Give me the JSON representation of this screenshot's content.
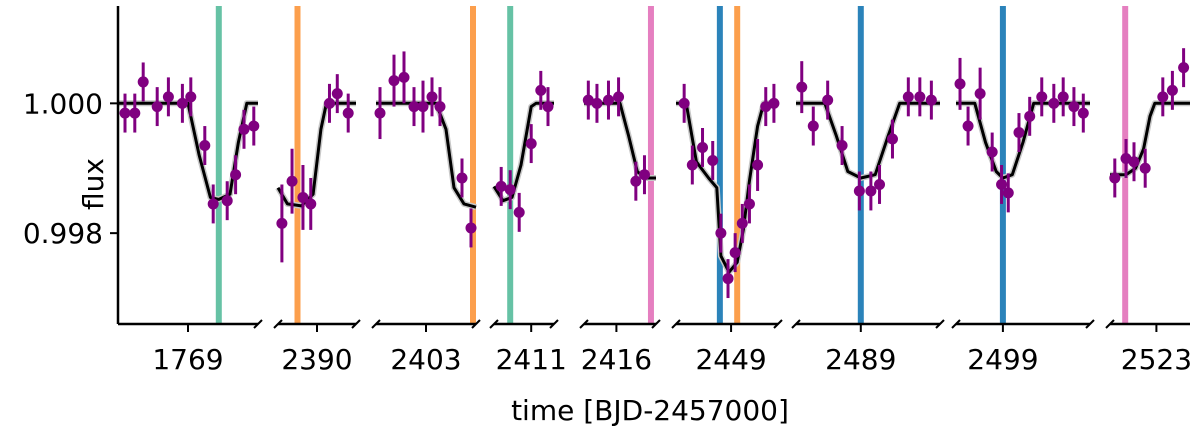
{
  "chart_data": {
    "type": "scatter",
    "xlabel": "time [BJD-2457000]",
    "ylabel": "flux",
    "ylim": [
      0.9966,
      1.0015
    ],
    "ytick_labels": [
      {
        "value": 1.0,
        "label": "1.000"
      },
      {
        "value": 0.998,
        "label": "0.998"
      }
    ],
    "grid": false,
    "colors": {
      "data": "#800080",
      "model": "#000000",
      "green": "#66c2a5",
      "orange": "#fc9f4d",
      "pink": "#e57fc0",
      "blue": "#2b83ba"
    },
    "panels": [
      {
        "tick_label": "1769",
        "x_range": [
          0,
          1
        ],
        "tick_at": 0.5,
        "vlines": [
          {
            "x": 0.72,
            "color": "green"
          }
        ],
        "model": [
          [
            0,
            1.0
          ],
          [
            0.5,
            1.0
          ],
          [
            0.58,
            0.9992
          ],
          [
            0.66,
            0.99855
          ],
          [
            0.72,
            0.99852
          ],
          [
            0.8,
            0.9986
          ],
          [
            0.86,
            0.9994
          ],
          [
            0.92,
            1.0
          ],
          [
            1,
            1.0
          ]
        ],
        "points": [
          {
            "x": 0.05,
            "y": 0.99985,
            "e": 0.0003
          },
          {
            "x": 0.12,
            "y": 0.99985,
            "e": 0.0003
          },
          {
            "x": 0.18,
            "y": 1.00033,
            "e": 0.0003
          },
          {
            "x": 0.28,
            "y": 0.99995,
            "e": 0.0003
          },
          {
            "x": 0.36,
            "y": 1.0001,
            "e": 0.0003
          },
          {
            "x": 0.46,
            "y": 1.0,
            "e": 0.0003
          },
          {
            "x": 0.52,
            "y": 1.0001,
            "e": 0.0003
          },
          {
            "x": 0.62,
            "y": 0.99935,
            "e": 0.0003
          },
          {
            "x": 0.68,
            "y": 0.99845,
            "e": 0.0003
          },
          {
            "x": 0.78,
            "y": 0.9985,
            "e": 0.0003
          },
          {
            "x": 0.84,
            "y": 0.9989,
            "e": 0.0003
          },
          {
            "x": 0.9,
            "y": 0.9996,
            "e": 0.0003
          },
          {
            "x": 0.97,
            "y": 0.99965,
            "e": 0.0003
          }
        ]
      },
      {
        "tick_label": "2390",
        "x_range": [
          0,
          1
        ],
        "tick_at": 0.5,
        "vlines": [
          {
            "x": 0.25,
            "color": "orange"
          }
        ],
        "model": [
          [
            0,
            0.9987
          ],
          [
            0.12,
            0.99845
          ],
          [
            0.3,
            0.99842
          ],
          [
            0.45,
            0.9986
          ],
          [
            0.55,
            0.9996
          ],
          [
            0.62,
            1.0
          ],
          [
            1,
            1.0
          ]
        ],
        "points": [
          {
            "x": 0.05,
            "y": 0.99815,
            "e": 0.0006
          },
          {
            "x": 0.18,
            "y": 0.9988,
            "e": 0.0005
          },
          {
            "x": 0.32,
            "y": 0.99855,
            "e": 0.0005
          },
          {
            "x": 0.42,
            "y": 0.99845,
            "e": 0.0004
          },
          {
            "x": 0.66,
            "y": 1.0,
            "e": 0.0003
          },
          {
            "x": 0.76,
            "y": 1.00015,
            "e": 0.0003
          },
          {
            "x": 0.9,
            "y": 0.99985,
            "e": 0.0003
          }
        ]
      },
      {
        "tick_label": "2403",
        "x_range": [
          0,
          1
        ],
        "tick_at": 0.5,
        "vlines": [
          {
            "x": 0.97,
            "color": "orange"
          }
        ],
        "model": [
          [
            0,
            1.0
          ],
          [
            0.6,
            1.0
          ],
          [
            0.7,
            0.9996
          ],
          [
            0.78,
            0.9987
          ],
          [
            0.88,
            0.99845
          ],
          [
            1,
            0.9984
          ]
        ],
        "points": [
          {
            "x": 0.04,
            "y": 0.99985,
            "e": 0.0004
          },
          {
            "x": 0.18,
            "y": 1.00035,
            "e": 0.0004
          },
          {
            "x": 0.28,
            "y": 1.0004,
            "e": 0.0004
          },
          {
            "x": 0.38,
            "y": 0.99995,
            "e": 0.0003
          },
          {
            "x": 0.47,
            "y": 0.99995,
            "e": 0.0004
          },
          {
            "x": 0.56,
            "y": 1.0001,
            "e": 0.0003
          },
          {
            "x": 0.64,
            "y": 0.99995,
            "e": 0.0003
          },
          {
            "x": 0.86,
            "y": 0.99885,
            "e": 0.0003
          },
          {
            "x": 0.95,
            "y": 0.99808,
            "e": 0.0003
          }
        ]
      },
      {
        "tick_label": "2411",
        "x_range": [
          0,
          1
        ],
        "tick_at": 0.62,
        "vlines": [
          {
            "x": 0.27,
            "color": "green"
          }
        ],
        "model": [
          [
            0,
            0.99872
          ],
          [
            0.15,
            0.9985
          ],
          [
            0.3,
            0.99855
          ],
          [
            0.45,
            0.99905
          ],
          [
            0.62,
            0.99995
          ],
          [
            0.7,
            1.0
          ],
          [
            1,
            1.0
          ]
        ],
        "points": [
          {
            "x": 0.12,
            "y": 0.99872,
            "e": 0.0003
          },
          {
            "x": 0.27,
            "y": 0.99867,
            "e": 0.0003
          },
          {
            "x": 0.42,
            "y": 0.99832,
            "e": 0.0003
          },
          {
            "x": 0.62,
            "y": 0.99938,
            "e": 0.0003
          },
          {
            "x": 0.78,
            "y": 1.0002,
            "e": 0.0003
          },
          {
            "x": 0.9,
            "y": 0.99995,
            "e": 0.0003
          }
        ]
      },
      {
        "tick_label": "2416",
        "x_range": [
          0,
          1
        ],
        "tick_at": 0.45,
        "vlines": [
          {
            "x": 0.93,
            "color": "pink"
          }
        ],
        "model": [
          [
            0,
            1.0
          ],
          [
            0.5,
            1.0
          ],
          [
            0.62,
            0.9995
          ],
          [
            0.74,
            0.99895
          ],
          [
            0.85,
            0.99885
          ],
          [
            1,
            0.99885
          ]
        ],
        "points": [
          {
            "x": 0.06,
            "y": 1.00005,
            "e": 0.0003
          },
          {
            "x": 0.18,
            "y": 1.0,
            "e": 0.0003
          },
          {
            "x": 0.34,
            "y": 1.00005,
            "e": 0.0003
          },
          {
            "x": 0.48,
            "y": 1.0001,
            "e": 0.0003
          },
          {
            "x": 0.72,
            "y": 0.9988,
            "e": 0.0003
          },
          {
            "x": 0.84,
            "y": 0.9989,
            "e": 0.0003
          }
        ]
      },
      {
        "tick_label": "2449",
        "x_range": [
          0,
          1
        ],
        "tick_at": 0.54,
        "vlines": [
          {
            "x": 0.43,
            "color": "blue"
          },
          {
            "x": 0.6,
            "color": "orange"
          }
        ],
        "model": [
          [
            0,
            1.0
          ],
          [
            0.1,
            1.0
          ],
          [
            0.2,
            0.9991
          ],
          [
            0.32,
            0.99885
          ],
          [
            0.4,
            0.9987
          ],
          [
            0.44,
            0.99765
          ],
          [
            0.52,
            0.9974
          ],
          [
            0.6,
            0.99755
          ],
          [
            0.66,
            0.99805
          ],
          [
            0.72,
            0.9988
          ],
          [
            0.8,
            0.99965
          ],
          [
            0.86,
            1.0
          ],
          [
            1,
            1.0
          ]
        ],
        "points": [
          {
            "x": 0.08,
            "y": 1.0,
            "e": 0.0003
          },
          {
            "x": 0.16,
            "y": 0.99905,
            "e": 0.0003
          },
          {
            "x": 0.26,
            "y": 0.99932,
            "e": 0.0003
          },
          {
            "x": 0.36,
            "y": 0.99912,
            "e": 0.0003
          },
          {
            "x": 0.44,
            "y": 0.998,
            "e": 0.0003
          },
          {
            "x": 0.51,
            "y": 0.9973,
            "e": 0.0003
          },
          {
            "x": 0.58,
            "y": 0.9977,
            "e": 0.0003
          },
          {
            "x": 0.65,
            "y": 0.99815,
            "e": 0.0003
          },
          {
            "x": 0.72,
            "y": 0.99845,
            "e": 0.0003
          },
          {
            "x": 0.8,
            "y": 0.99905,
            "e": 0.0004
          },
          {
            "x": 0.88,
            "y": 0.99995,
            "e": 0.0003
          },
          {
            "x": 0.96,
            "y": 1.0,
            "e": 0.0003
          }
        ]
      },
      {
        "tick_label": "2489",
        "x_range": [
          0,
          1
        ],
        "tick_at": 0.45,
        "vlines": [
          {
            "x": 0.45,
            "color": "blue"
          }
        ],
        "model": [
          [
            0,
            1.0
          ],
          [
            0.2,
            1.0
          ],
          [
            0.28,
            0.9995
          ],
          [
            0.36,
            0.99895
          ],
          [
            0.45,
            0.99885
          ],
          [
            0.55,
            0.9989
          ],
          [
            0.64,
            0.9995
          ],
          [
            0.72,
            1.0
          ],
          [
            1,
            1.0
          ]
        ],
        "points": [
          {
            "x": 0.04,
            "y": 1.00025,
            "e": 0.0004
          },
          {
            "x": 0.12,
            "y": 0.99965,
            "e": 0.0003
          },
          {
            "x": 0.22,
            "y": 1.00005,
            "e": 0.0003
          },
          {
            "x": 0.32,
            "y": 0.99935,
            "e": 0.0003
          },
          {
            "x": 0.44,
            "y": 0.99865,
            "e": 0.0003
          },
          {
            "x": 0.52,
            "y": 0.99865,
            "e": 0.0003
          },
          {
            "x": 0.58,
            "y": 0.99875,
            "e": 0.0003
          },
          {
            "x": 0.67,
            "y": 0.99945,
            "e": 0.0003
          },
          {
            "x": 0.78,
            "y": 1.0001,
            "e": 0.0003
          },
          {
            "x": 0.86,
            "y": 1.0001,
            "e": 0.0003
          },
          {
            "x": 0.94,
            "y": 1.00005,
            "e": 0.0003
          }
        ]
      },
      {
        "tick_label": "2499",
        "x_range": [
          0,
          1
        ],
        "tick_at": 0.35,
        "vlines": [
          {
            "x": 0.35,
            "color": "blue"
          }
        ],
        "model": [
          [
            0,
            1.0
          ],
          [
            0.14,
            1.0
          ],
          [
            0.22,
            0.9994
          ],
          [
            0.3,
            0.99895
          ],
          [
            0.35,
            0.99885
          ],
          [
            0.42,
            0.9989
          ],
          [
            0.5,
            0.9994
          ],
          [
            0.58,
            1.0
          ],
          [
            1,
            1.0
          ]
        ],
        "points": [
          {
            "x": 0.03,
            "y": 1.0003,
            "e": 0.0004
          },
          {
            "x": 0.09,
            "y": 0.99965,
            "e": 0.0003
          },
          {
            "x": 0.18,
            "y": 1.00015,
            "e": 0.0004
          },
          {
            "x": 0.27,
            "y": 0.99925,
            "e": 0.0003
          },
          {
            "x": 0.34,
            "y": 0.99875,
            "e": 0.0003
          },
          {
            "x": 0.39,
            "y": 0.99862,
            "e": 0.0003
          },
          {
            "x": 0.47,
            "y": 0.99955,
            "e": 0.0003
          },
          {
            "x": 0.55,
            "y": 0.9998,
            "e": 0.0003
          },
          {
            "x": 0.64,
            "y": 1.0001,
            "e": 0.0003
          },
          {
            "x": 0.73,
            "y": 1.0,
            "e": 0.0003
          },
          {
            "x": 0.8,
            "y": 1.0001,
            "e": 0.0003
          },
          {
            "x": 0.88,
            "y": 0.99995,
            "e": 0.0003
          },
          {
            "x": 0.95,
            "y": 0.99985,
            "e": 0.0003
          }
        ]
      },
      {
        "tick_label": "2523",
        "x_range": [
          0,
          1
        ],
        "tick_at": 0.58,
        "vlines": [
          {
            "x": 0.19,
            "color": "pink"
          }
        ],
        "model": [
          [
            0,
            0.9989
          ],
          [
            0.2,
            0.9989
          ],
          [
            0.32,
            0.999
          ],
          [
            0.42,
            0.9993
          ],
          [
            0.5,
            0.9998
          ],
          [
            0.56,
            1.0
          ],
          [
            1,
            1.0
          ]
        ],
        "points": [
          {
            "x": 0.06,
            "y": 0.99885,
            "e": 0.0003
          },
          {
            "x": 0.2,
            "y": 0.99915,
            "e": 0.0003
          },
          {
            "x": 0.3,
            "y": 0.9991,
            "e": 0.0003
          },
          {
            "x": 0.44,
            "y": 0.999,
            "e": 0.0003
          },
          {
            "x": 0.66,
            "y": 1.0001,
            "e": 0.0003
          },
          {
            "x": 0.78,
            "y": 1.0002,
            "e": 0.0003
          },
          {
            "x": 0.92,
            "y": 1.00055,
            "e": 0.0003
          }
        ]
      }
    ]
  }
}
